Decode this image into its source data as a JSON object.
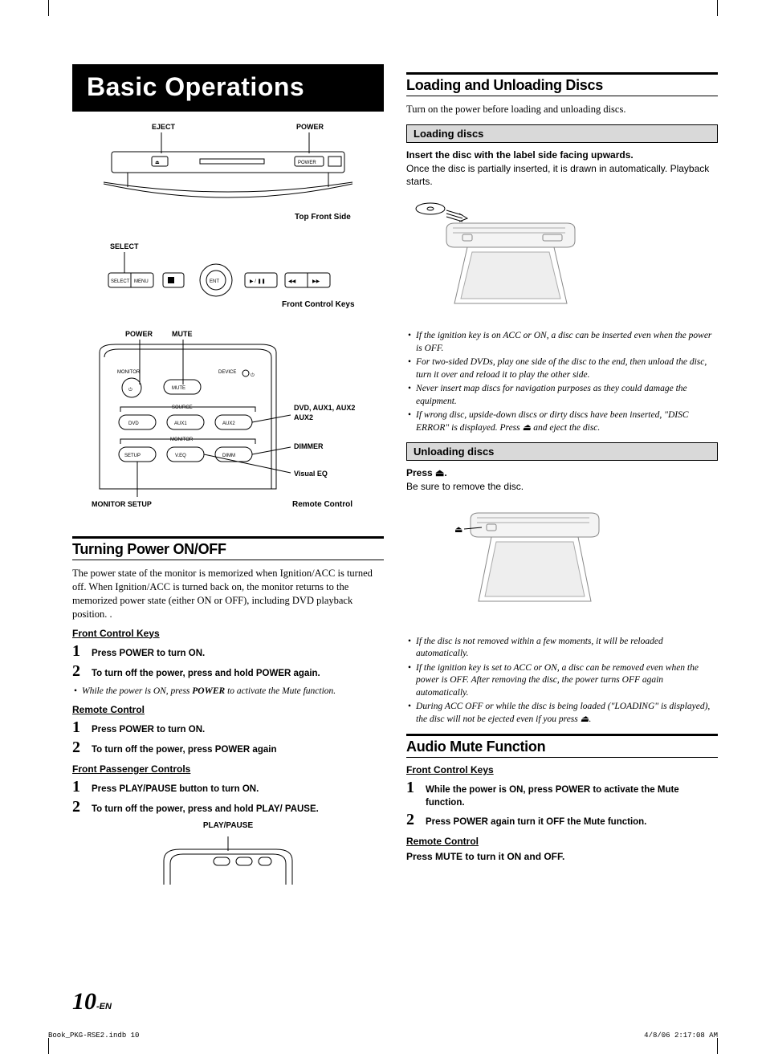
{
  "banner": "Basic Operations",
  "left": {
    "diagram1": {
      "labels": {
        "eject": "EJECT",
        "power": "POWER"
      },
      "btn_power": "POWER",
      "caption": "Top Front Side"
    },
    "diagram2": {
      "label_select": "SELECT",
      "btn_select": "SELECT",
      "btn_menu": "MENU",
      "btn_ent": "ENT",
      "caption": "Front Control Keys"
    },
    "diagram3": {
      "label_power": "POWER",
      "label_mute": "MUTE",
      "label_monitor": "MONITOR",
      "label_device": "DEVICE",
      "btn_mute": "MUTE",
      "label_source": "SOURCE",
      "btn_dvd": "DVD",
      "btn_aux1": "AUX1",
      "btn_aux2": "AUX2",
      "label_monitor2": "MONITOR",
      "btn_setup": "SETUP",
      "btn_veq": "V.EQ",
      "btn_dimm": "DIMM",
      "side_dvd": "DVD, AUX1, AUX2",
      "side_dimmer": "DIMMER",
      "side_veq": "Visual EQ",
      "bottom_setup": "MONITOR SETUP",
      "caption": "Remote Control"
    },
    "sec1_title": "Turning Power ON/OFF",
    "sec1_body": "The power state of the monitor is memorized when Ignition/ACC is turned off.  When Ignition/ACC is turned back on, the monitor returns to the memorized power state (either ON or OFF), including DVD playback position. .",
    "fck_title": "Front Control Keys",
    "fck_steps": [
      {
        "n": "1",
        "t": "Press <b>POWER</b> to turn ON."
      },
      {
        "n": "2",
        "t": "To turn off the power, press and hold <b>POWER</b> again."
      }
    ],
    "fck_note": "While the power is ON, press <b>POWER</b> to activate the Mute function.",
    "rc_title": "Remote Control",
    "rc_steps": [
      {
        "n": "1",
        "t": "Press <b>POWER</b> to turn ON."
      },
      {
        "n": "2",
        "t": "To turn off the power, press <b>POWER</b> again"
      }
    ],
    "fpc_title": "Front Passenger Controls",
    "fpc_steps": [
      {
        "n": "1",
        "t": "Press <b>PLAY/PAUSE</b> button to turn ON."
      },
      {
        "n": "2",
        "t": "To turn off the power, press and hold <b>PLAY/ PAUSE</b>."
      }
    ],
    "playpause_label": "PLAY/PAUSE"
  },
  "right": {
    "sec2_title": "Loading and Unloading Discs",
    "sec2_body": "Turn on the power before loading and unloading discs.",
    "loading_title": "Loading discs",
    "loading_bold": "Insert the disc with the label side facing upwards.",
    "loading_body": "Once the disc is partially inserted, it is drawn in automatically. Playback starts.",
    "loading_notes": [
      "If the ignition key is on ACC or ON, a disc can be inserted even when the power is OFF.",
      "For two-sided DVDs, play one side of the disc to the end, then unload the disc, turn it over and reload it to play the other side.",
      "Never insert map discs for navigation purposes as they could damage the equipment.",
      "If wrong disc, upside-down discs or dirty discs have been inserted, \"DISC ERROR\" is displayed. Press ⏏ and eject the disc."
    ],
    "unloading_title": "Unloading discs",
    "unloading_bold": "Press ⏏.",
    "unloading_body": "Be sure to remove the disc.",
    "unloading_notes": [
      "If the disc is not removed within a few moments, it will be reloaded automatically.",
      "If the ignition key is set to ACC or ON, a disc can be removed even when the power is OFF. After removing the disc, the power turns OFF again automatically.",
      "During ACC OFF or while the disc is being loaded (\"LOADING\" is displayed), the disc will not be ejected even if you press ⏏."
    ],
    "sec3_title": "Audio Mute Function",
    "amf_fck_title": "Front Control Keys",
    "amf_steps": [
      {
        "n": "1",
        "t": "While the power is ON, press <b>POWER</b> to activate the Mute function."
      },
      {
        "n": "2",
        "t": "Press <b>POWER</b> again turn it OFF the Mute function."
      }
    ],
    "amf_rc_title": "Remote Control",
    "amf_rc_body": "Press <b>MUTE</b> to turn it ON and OFF."
  },
  "footer": {
    "page": "10",
    "suffix": "-EN"
  },
  "print": {
    "left": "Book_PKG-RSE2.indb   10",
    "right": "4/8/06   2:17:08 AM"
  }
}
